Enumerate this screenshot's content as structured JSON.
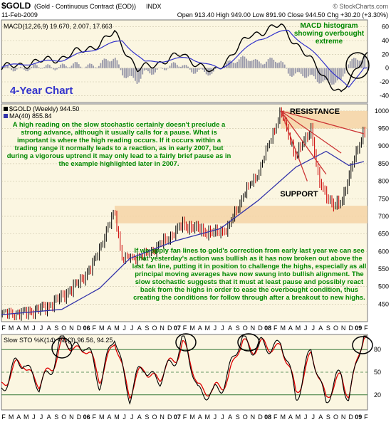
{
  "header": {
    "symbol": "$GOLD",
    "name": "(Gold - Continuous Contract (EOD))",
    "exchange": "INDX",
    "date": "11-Feb-2009",
    "ohlc": "Open 913.40  High 949.00  Low 891.90  Close 944.50  Chg +30.20 (+3.30%)",
    "source": "© StockCharts.com"
  },
  "macd": {
    "label": "MACD(12,26,9) 19.670, 2.007, 17.663",
    "ticks": [
      "60",
      "40",
      "20",
      "0",
      "-20",
      "-40"
    ],
    "annotation": "MACD histogram showing overbought extreme"
  },
  "price": {
    "title": "4-Year Chart",
    "legend_main": "$GOLD (Weekly) 944.50",
    "legend_ma": "MA(40) 855.84",
    "ticks": [
      "1000",
      "950",
      "900",
      "850",
      "800",
      "750",
      "700",
      "650",
      "600",
      "550",
      "500",
      "450"
    ],
    "resistance": "RESISTANCE",
    "support": "SUPPORT",
    "note1": "A high reading on the slow stochastic certainly doesn't preclude a strong advance, although it usually calls for a pause. What is important is where the high reading occurs. If it occurs within a trading range it normally leads to a reaction, as in early 2007, but during a vigorous uptrend it may only lead to a fairly brief pause as in the example highlighted later in 2007.",
    "note2": "If we apply fan lines to gold's correction from early last year we can see that yesterday's action was bullish as it has now broken out above the last fan line, putting it in position to challenge the highs, especially as all principal moving averages have now swung into bullish alignment. The slow stochastic suggests that it must at least pause and possibly react back from the highs in order to ease the overbought condition, thus creating the conditions for follow through after a breakout to new highs."
  },
  "axis": {
    "months": [
      "F",
      "M",
      "A",
      "M",
      "J",
      "J",
      "A",
      "S",
      "O",
      "N",
      "D",
      "06",
      "F",
      "M",
      "A",
      "M",
      "J",
      "J",
      "A",
      "S",
      "O",
      "N",
      "D",
      "07",
      "F",
      "M",
      "A",
      "M",
      "J",
      "J",
      "A",
      "S",
      "O",
      "N",
      "D",
      "08",
      "F",
      "M",
      "A",
      "M",
      "J",
      "J",
      "A",
      "S",
      "O",
      "N",
      "D",
      "09",
      "F"
    ]
  },
  "stoch": {
    "label": "Slow STO %K(14) %D(3) 96.56, 94.25",
    "ticks": [
      "80",
      "50",
      "20"
    ]
  },
  "colors": {
    "bg": "#fbf6e1",
    "price_up": "#000000",
    "price_down": "#cc0000",
    "ma": "#3333aa",
    "band": "#f5d3a6",
    "note": "#008800",
    "macd_signal": "#3333cc",
    "hist": "#9999aa",
    "stoch_k": "#000000",
    "stoch_d": "#dd0000",
    "fan": "#cc3333",
    "title": "#3333cc"
  },
  "chart_data": {
    "type": "candlestick",
    "frequency": "weekly",
    "x_range": [
      "2005-02",
      "2009-02"
    ],
    "price_ylim": [
      400,
      1020
    ],
    "price_series": [
      {
        "date": "2005-02",
        "value": 425
      },
      {
        "date": "2005-05",
        "value": 425
      },
      {
        "date": "2005-08",
        "value": 440
      },
      {
        "date": "2005-10",
        "value": 470
      },
      {
        "date": "2005-12",
        "value": 505
      },
      {
        "date": "2006-02",
        "value": 555
      },
      {
        "date": "2006-05",
        "value": 715
      },
      {
        "date": "2006-06",
        "value": 580
      },
      {
        "date": "2006-09",
        "value": 590
      },
      {
        "date": "2006-12",
        "value": 635
      },
      {
        "date": "2007-02",
        "value": 675
      },
      {
        "date": "2007-06",
        "value": 650
      },
      {
        "date": "2007-08",
        "value": 665
      },
      {
        "date": "2007-10",
        "value": 760
      },
      {
        "date": "2007-12",
        "value": 825
      },
      {
        "date": "2008-03",
        "value": 1000
      },
      {
        "date": "2008-05",
        "value": 870
      },
      {
        "date": "2008-07",
        "value": 950
      },
      {
        "date": "2008-08",
        "value": 800
      },
      {
        "date": "2008-10",
        "value": 725
      },
      {
        "date": "2008-11",
        "value": 740
      },
      {
        "date": "2009-01",
        "value": 880
      },
      {
        "date": "2009-02",
        "value": 944.5
      }
    ],
    "ma40": [
      {
        "date": "2005-02",
        "value": 420
      },
      {
        "date": "2005-10",
        "value": 435
      },
      {
        "date": "2006-03",
        "value": 495
      },
      {
        "date": "2006-07",
        "value": 580
      },
      {
        "date": "2007-01",
        "value": 630
      },
      {
        "date": "2007-07",
        "value": 665
      },
      {
        "date": "2007-12",
        "value": 745
      },
      {
        "date": "2008-05",
        "value": 840
      },
      {
        "date": "2008-09",
        "value": 885
      },
      {
        "date": "2008-12",
        "value": 845
      },
      {
        "date": "2009-02",
        "value": 855.84
      }
    ],
    "resistance_zone": [
      950,
      1000
    ],
    "support_zone": [
      680,
      730
    ],
    "macd": {
      "ylim": [
        -50,
        70
      ],
      "last": {
        "macd": 19.67,
        "signal": 2.007,
        "histogram": 17.663
      },
      "macd_line": [
        {
          "date": "2005-02",
          "value": 0
        },
        {
          "date": "2005-10",
          "value": 15
        },
        {
          "date": "2006-03",
          "value": 35
        },
        {
          "date": "2006-05",
          "value": 52
        },
        {
          "date": "2006-08",
          "value": -3
        },
        {
          "date": "2007-02",
          "value": 20
        },
        {
          "date": "2007-06",
          "value": -8
        },
        {
          "date": "2007-11",
          "value": 48
        },
        {
          "date": "2008-03",
          "value": 62
        },
        {
          "date": "2008-08",
          "value": -2
        },
        {
          "date": "2008-11",
          "value": -40
        },
        {
          "date": "2009-02",
          "value": 19.67
        }
      ],
      "signal_line": [
        {
          "date": "2005-02",
          "value": 2
        },
        {
          "date": "2005-10",
          "value": 12
        },
        {
          "date": "2006-03",
          "value": 30
        },
        {
          "date": "2006-06",
          "value": 40
        },
        {
          "date": "2006-09",
          "value": 8
        },
        {
          "date": "2007-03",
          "value": 15
        },
        {
          "date": "2007-07",
          "value": -2
        },
        {
          "date": "2007-12",
          "value": 42
        },
        {
          "date": "2008-04",
          "value": 55
        },
        {
          "date": "2008-09",
          "value": 5
        },
        {
          "date": "2008-12",
          "value": -30
        },
        {
          "date": "2009-02",
          "value": 2.007
        }
      ]
    },
    "stoch": {
      "ylim": [
        0,
        100
      ],
      "last": {
        "k": 96.56,
        "d": 94.25
      },
      "k_line": [
        {
          "date": "2005-02",
          "value": 30
        },
        {
          "date": "2005-05",
          "value": 70
        },
        {
          "date": "2005-07",
          "value": 25
        },
        {
          "date": "2005-10",
          "value": 90
        },
        {
          "date": "2006-01",
          "value": 85
        },
        {
          "date": "2006-03",
          "value": 40
        },
        {
          "date": "2006-05",
          "value": 95
        },
        {
          "date": "2006-07",
          "value": 20
        },
        {
          "date": "2006-09",
          "value": 60
        },
        {
          "date": "2006-11",
          "value": 35
        },
        {
          "date": "2007-02",
          "value": 92
        },
        {
          "date": "2007-04",
          "value": 30
        },
        {
          "date": "2007-06",
          "value": 15
        },
        {
          "date": "2007-08",
          "value": 50
        },
        {
          "date": "2007-10",
          "value": 95
        },
        {
          "date": "2007-12",
          "value": 80
        },
        {
          "date": "2008-03",
          "value": 90
        },
        {
          "date": "2008-05",
          "value": 20
        },
        {
          "date": "2008-07",
          "value": 75
        },
        {
          "date": "2008-09",
          "value": 15
        },
        {
          "date": "2008-11",
          "value": 45
        },
        {
          "date": "2008-12",
          "value": 20
        },
        {
          "date": "2009-02",
          "value": 96.56
        }
      ],
      "d_line": [
        {
          "date": "2005-02",
          "value": 35
        },
        {
          "date": "2005-05",
          "value": 65
        },
        {
          "date": "2005-07",
          "value": 30
        },
        {
          "date": "2005-10",
          "value": 85
        },
        {
          "date": "2006-01",
          "value": 82
        },
        {
          "date": "2006-03",
          "value": 45
        },
        {
          "date": "2006-05",
          "value": 88
        },
        {
          "date": "2006-07",
          "value": 25
        },
        {
          "date": "2006-09",
          "value": 55
        },
        {
          "date": "2006-11",
          "value": 40
        },
        {
          "date": "2007-02",
          "value": 88
        },
        {
          "date": "2007-04",
          "value": 35
        },
        {
          "date": "2007-06",
          "value": 20
        },
        {
          "date": "2007-08",
          "value": 45
        },
        {
          "date": "2007-10",
          "value": 90
        },
        {
          "date": "2007-12",
          "value": 82
        },
        {
          "date": "2008-03",
          "value": 86
        },
        {
          "date": "2008-05",
          "value": 25
        },
        {
          "date": "2008-07",
          "value": 70
        },
        {
          "date": "2008-09",
          "value": 20
        },
        {
          "date": "2008-11",
          "value": 40
        },
        {
          "date": "2008-12",
          "value": 25
        },
        {
          "date": "2009-02",
          "value": 94.25
        }
      ]
    }
  }
}
